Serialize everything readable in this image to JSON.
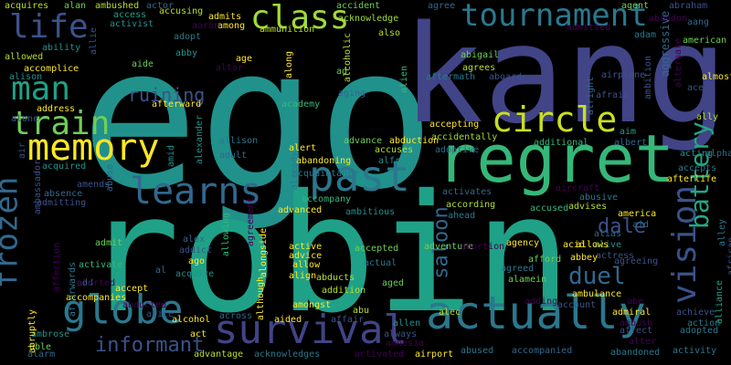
{
  "palette": {
    "background": "#000000",
    "dark_purple": "#440154",
    "indigo": "#3b528b",
    "blue": "#31688e",
    "teal": "#21918c",
    "green": "#35b779",
    "light_green": "#6ece58",
    "yellow_green": "#b5de2b",
    "yellow": "#fde725"
  },
  "words": [
    {
      "text": "ego",
      "color": "#21918c",
      "vertical": false
    },
    {
      "text": "kang",
      "color": "#414487",
      "vertical": false
    },
    {
      "text": "robin",
      "color": "#1fa187",
      "vertical": false
    },
    {
      "text": "regret",
      "color": "#35b779",
      "vertical": false
    },
    {
      "text": "actually",
      "color": "#2a788e",
      "vertical": false
    },
    {
      "text": "survival",
      "color": "#414487",
      "vertical": false
    },
    {
      "text": "globe",
      "color": "#2a788e",
      "vertical": false
    },
    {
      "text": "past",
      "color": "#2a788e",
      "vertical": false
    },
    {
      "text": "memory",
      "color": "#fde725",
      "vertical": false
    },
    {
      "text": "learns",
      "color": "#31688e",
      "vertical": false
    },
    {
      "text": "circle",
      "color": "#c8e020",
      "vertical": false
    },
    {
      "text": "class",
      "color": "#a0da39",
      "vertical": false
    },
    {
      "text": "tournament",
      "color": "#2a788e",
      "vertical": false
    },
    {
      "text": "train",
      "color": "#6ece58",
      "vertical": false
    },
    {
      "text": "man",
      "color": "#1fa187",
      "vertical": false
    },
    {
      "text": "life",
      "color": "#3b528b",
      "vertical": false
    },
    {
      "text": "frozen",
      "color": "#31688e",
      "vertical": true
    },
    {
      "text": "vision",
      "color": "#3b528b",
      "vertical": true
    },
    {
      "text": "battery",
      "color": "#22a884",
      "vertical": true
    },
    {
      "text": "duel",
      "color": "#31688e",
      "vertical": false
    },
    {
      "text": "dale",
      "color": "#3b528b",
      "vertical": false
    },
    {
      "text": "informant",
      "color": "#3b528b",
      "vertical": false
    },
    {
      "text": "ruining",
      "color": "#3b528b",
      "vertical": false
    },
    {
      "text": "saloon",
      "color": "#31688e",
      "vertical": true
    },
    {
      "text": "acquires",
      "color": "#b5de2b",
      "vertical": false
    },
    {
      "text": "alan",
      "color": "#6ece58",
      "vertical": false
    },
    {
      "text": "ambushed",
      "color": "#b5de2b",
      "vertical": false
    },
    {
      "text": "actor",
      "color": "#31688e",
      "vertical": false
    },
    {
      "text": "accusing",
      "color": "#b5de2b",
      "vertical": false
    },
    {
      "text": "access",
      "color": "#1fa187",
      "vertical": false
    },
    {
      "text": "activist",
      "color": "#21918c",
      "vertical": false
    },
    {
      "text": "admits",
      "color": "#fde725",
      "vertical": false
    },
    {
      "text": "among",
      "color": "#fde725",
      "vertical": false
    },
    {
      "text": "ammunition",
      "color": "#b5de2b",
      "vertical": false
    },
    {
      "text": "accident",
      "color": "#6ece58",
      "vertical": false
    },
    {
      "text": "acknowledge",
      "color": "#a0da39",
      "vertical": false
    },
    {
      "text": "also",
      "color": "#b5de2b",
      "vertical": false
    },
    {
      "text": "agree",
      "color": "#31688e",
      "vertical": false
    },
    {
      "text": "agent",
      "color": "#6ece58",
      "vertical": false
    },
    {
      "text": "abraham",
      "color": "#3b528b",
      "vertical": false
    },
    {
      "text": "abandon",
      "color": "#440154",
      "vertical": false
    },
    {
      "text": "aang",
      "color": "#31688e",
      "vertical": false
    },
    {
      "text": "american",
      "color": "#6ece58",
      "vertical": false
    },
    {
      "text": "adam",
      "color": "#2a788e",
      "vertical": false
    },
    {
      "text": "ability",
      "color": "#21918c",
      "vertical": false
    },
    {
      "text": "allowed",
      "color": "#b5de2b",
      "vertical": false
    },
    {
      "text": "accomplice",
      "color": "#fde725",
      "vertical": false
    },
    {
      "text": "alison",
      "color": "#21918c",
      "vertical": false
    },
    {
      "text": "address",
      "color": "#fde725",
      "vertical": false
    },
    {
      "text": "alone",
      "color": "#3b528b",
      "vertical": false
    },
    {
      "text": "aaron",
      "color": "#440154",
      "vertical": false
    },
    {
      "text": "adopt",
      "color": "#2a788e",
      "vertical": false
    },
    {
      "text": "abby",
      "color": "#21918c",
      "vertical": false
    },
    {
      "text": "aide",
      "color": "#6ece58",
      "vertical": false
    },
    {
      "text": "altar",
      "color": "#440154",
      "vertical": false
    },
    {
      "text": "age",
      "color": "#fde725",
      "vertical": false
    },
    {
      "text": "afterward",
      "color": "#fde725",
      "vertical": false
    },
    {
      "text": "ad",
      "color": "#6ece58",
      "vertical": false
    },
    {
      "text": "aging",
      "color": "#31688e",
      "vertical": false
    },
    {
      "text": "academy",
      "color": "#35b779",
      "vertical": false
    },
    {
      "text": "abigail",
      "color": "#6ece58",
      "vertical": false
    },
    {
      "text": "agrees",
      "color": "#b5de2b",
      "vertical": false
    },
    {
      "text": "aftermath",
      "color": "#2a788e",
      "vertical": false
    },
    {
      "text": "aboard",
      "color": "#3b528b",
      "vertical": false
    },
    {
      "text": "admitted",
      "color": "#440154",
      "vertical": false
    },
    {
      "text": "afraid",
      "color": "#3b528b",
      "vertical": false
    },
    {
      "text": "airplane",
      "color": "#3b528b",
      "vertical": false
    },
    {
      "text": "ace",
      "color": "#3b528b",
      "vertical": false
    },
    {
      "text": "almost",
      "color": "#fde725",
      "vertical": false
    },
    {
      "text": "aim",
      "color": "#1fa187",
      "vertical": false
    },
    {
      "text": "albert",
      "color": "#31688e",
      "vertical": false
    },
    {
      "text": "additional",
      "color": "#35b779",
      "vertical": false
    },
    {
      "text": "ally",
      "color": "#b5de2b",
      "vertical": false
    },
    {
      "text": "accepting",
      "color": "#fde725",
      "vertical": false
    },
    {
      "text": "accidentally",
      "color": "#a0da39",
      "vertical": false
    },
    {
      "text": "adoptive",
      "color": "#31688e",
      "vertical": false
    },
    {
      "text": "advance",
      "color": "#6ece58",
      "vertical": false
    },
    {
      "text": "abduction",
      "color": "#fde725",
      "vertical": false
    },
    {
      "text": "alert",
      "color": "#fde725",
      "vertical": false
    },
    {
      "text": "abandoning",
      "color": "#fde725",
      "vertical": false
    },
    {
      "text": "accuses",
      "color": "#b5de2b",
      "vertical": false
    },
    {
      "text": "alfred",
      "color": "#21918c",
      "vertical": false
    },
    {
      "text": "acquaintance",
      "color": "#2a788e",
      "vertical": false
    },
    {
      "text": "allison",
      "color": "#2a788e",
      "vertical": false
    },
    {
      "text": "adult",
      "color": "#31688e",
      "vertical": false
    },
    {
      "text": "acting",
      "color": "#21918c",
      "vertical": false
    },
    {
      "text": "alpha",
      "color": "#31688e",
      "vertical": false
    },
    {
      "text": "accepts",
      "color": "#2a788e",
      "vertical": false
    },
    {
      "text": "afterlife",
      "color": "#fde725",
      "vertical": false
    },
    {
      "text": "acquired",
      "color": "#21918c",
      "vertical": false
    },
    {
      "text": "absence",
      "color": "#31688e",
      "vertical": false
    },
    {
      "text": "admitting",
      "color": "#3b528b",
      "vertical": false
    },
    {
      "text": "amends",
      "color": "#3b528b",
      "vertical": false
    },
    {
      "text": "activates",
      "color": "#31688e",
      "vertical": false
    },
    {
      "text": "aircraft",
      "color": "#440154",
      "vertical": false
    },
    {
      "text": "accompany",
      "color": "#35b779",
      "vertical": false
    },
    {
      "text": "advanced",
      "color": "#fde725",
      "vertical": false
    },
    {
      "text": "ambitious",
      "color": "#21918c",
      "vertical": false
    },
    {
      "text": "according",
      "color": "#b5de2b",
      "vertical": false
    },
    {
      "text": "accused",
      "color": "#35b779",
      "vertical": false
    },
    {
      "text": "advises",
      "color": "#b5de2b",
      "vertical": false
    },
    {
      "text": "abusive",
      "color": "#2a788e",
      "vertical": false
    },
    {
      "text": "america",
      "color": "#fde725",
      "vertical": false
    },
    {
      "text": "aid",
      "color": "#31688e",
      "vertical": false
    },
    {
      "text": "ahead",
      "color": "#2a788e",
      "vertical": false
    },
    {
      "text": "alias",
      "color": "#31688e",
      "vertical": false
    },
    {
      "text": "alive",
      "color": "#21918c",
      "vertical": false
    },
    {
      "text": "actress",
      "color": "#3b528b",
      "vertical": false
    },
    {
      "text": "acid",
      "color": "#fde725",
      "vertical": false
    },
    {
      "text": "allows",
      "color": "#fde725",
      "vertical": false
    },
    {
      "text": "abbey",
      "color": "#fde725",
      "vertical": false
    },
    {
      "text": "agreeing",
      "color": "#3b528b",
      "vertical": false
    },
    {
      "text": "agency",
      "color": "#fde725",
      "vertical": false
    },
    {
      "text": "afford",
      "color": "#6ece58",
      "vertical": false
    },
    {
      "text": "agreed",
      "color": "#2a788e",
      "vertical": false
    },
    {
      "text": "alamein",
      "color": "#6ece58",
      "vertical": false
    },
    {
      "text": "adding",
      "color": "#440154",
      "vertical": false
    },
    {
      "text": "actual",
      "color": "#2a788e",
      "vertical": false
    },
    {
      "text": "aged",
      "color": "#6ece58",
      "vertical": false
    },
    {
      "text": "abducts",
      "color": "#b5de2b",
      "vertical": false
    },
    {
      "text": "addition",
      "color": "#b5de2b",
      "vertical": false
    },
    {
      "text": "allow",
      "color": "#fde725",
      "vertical": false
    },
    {
      "text": "advice",
      "color": "#fde725",
      "vertical": false
    },
    {
      "text": "align",
      "color": "#fde725",
      "vertical": false
    },
    {
      "text": "active",
      "color": "#fde725",
      "vertical": false
    },
    {
      "text": "accepted",
      "color": "#6ece58",
      "vertical": false
    },
    {
      "text": "adventure",
      "color": "#6ece58",
      "vertical": false
    },
    {
      "text": "abortion",
      "color": "#440154",
      "vertical": false
    },
    {
      "text": "alec",
      "color": "#b5de2b",
      "vertical": false
    },
    {
      "text": "account",
      "color": "#3b528b",
      "vertical": false
    },
    {
      "text": "admiral",
      "color": "#fde725",
      "vertical": false
    },
    {
      "text": "affect",
      "color": "#3b528b",
      "vertical": false
    },
    {
      "text": "alter",
      "color": "#440154",
      "vertical": false
    },
    {
      "text": "ambush",
      "color": "#440154",
      "vertical": false
    },
    {
      "text": "abe",
      "color": "#440154",
      "vertical": false
    },
    {
      "text": "ambulance",
      "color": "#fde725",
      "vertical": false
    },
    {
      "text": "achieve",
      "color": "#3b528b",
      "vertical": false
    },
    {
      "text": "action",
      "color": "#2a788e",
      "vertical": false
    },
    {
      "text": "adopted",
      "color": "#2a788e",
      "vertical": false
    },
    {
      "text": "activity",
      "color": "#2a788e",
      "vertical": false
    },
    {
      "text": "abandoned",
      "color": "#2a788e",
      "vertical": false
    },
    {
      "text": "accompanied",
      "color": "#31688e",
      "vertical": false
    },
    {
      "text": "abused",
      "color": "#2a788e",
      "vertical": false
    },
    {
      "text": "airport",
      "color": "#fde725",
      "vertical": false
    },
    {
      "text": "activated",
      "color": "#440154",
      "vertical": false
    },
    {
      "text": "always",
      "color": "#3b528b",
      "vertical": false
    },
    {
      "text": "allen",
      "color": "#21918c",
      "vertical": false
    },
    {
      "text": "amnesia",
      "color": "#440154",
      "vertical": false
    },
    {
      "text": "abu",
      "color": "#b5de2b",
      "vertical": false
    },
    {
      "text": "affair",
      "color": "#3b528b",
      "vertical": false
    },
    {
      "text": "aided",
      "color": "#fde725",
      "vertical": false
    },
    {
      "text": "acknowledges",
      "color": "#2a788e",
      "vertical": false
    },
    {
      "text": "advantage",
      "color": "#b5de2b",
      "vertical": false
    },
    {
      "text": "act",
      "color": "#fde725",
      "vertical": false
    },
    {
      "text": "alcohol",
      "color": "#fde725",
      "vertical": false
    },
    {
      "text": "across",
      "color": "#31688e",
      "vertical": false
    },
    {
      "text": "alice",
      "color": "#3b528b",
      "vertical": false
    },
    {
      "text": "abducted",
      "color": "#440154",
      "vertical": false
    },
    {
      "text": "accept",
      "color": "#fde725",
      "vertical": false
    },
    {
      "text": "add",
      "color": "#2a788e",
      "vertical": false
    },
    {
      "text": "accompanies",
      "color": "#fde725",
      "vertical": false
    },
    {
      "text": "activate",
      "color": "#35b779",
      "vertical": false
    },
    {
      "text": "admit",
      "color": "#6ece58",
      "vertical": false
    },
    {
      "text": "alerted",
      "color": "#440154",
      "vertical": false
    },
    {
      "text": "alex",
      "color": "#31688e",
      "vertical": false
    },
    {
      "text": "addict",
      "color": "#3b528b",
      "vertical": false
    },
    {
      "text": "ago",
      "color": "#fde725",
      "vertical": false
    },
    {
      "text": "acquire",
      "color": "#21918c",
      "vertical": false
    },
    {
      "text": "al",
      "color": "#31688e",
      "vertical": false
    },
    {
      "text": "amongst",
      "color": "#fde725",
      "vertical": false
    },
    {
      "text": "able",
      "color": "#6ece58",
      "vertical": false
    },
    {
      "text": "alarm",
      "color": "#31688e",
      "vertical": false
    },
    {
      "text": "ambrose",
      "color": "#21918c",
      "vertical": false
    },
    {
      "text": "allie",
      "color": "#3b528b",
      "vertical": true
    },
    {
      "text": "air",
      "color": "#3b528b",
      "vertical": true
    },
    {
      "text": "aggressive",
      "color": "#31688e",
      "vertical": true
    },
    {
      "text": "ambition",
      "color": "#3b528b",
      "vertical": true
    },
    {
      "text": "alternate",
      "color": "#440154",
      "vertical": true
    },
    {
      "text": "alright",
      "color": "#31688e",
      "vertical": true
    },
    {
      "text": "ambassador",
      "color": "#3b528b",
      "vertical": true
    },
    {
      "text": "abuse",
      "color": "#31688e",
      "vertical": true
    },
    {
      "text": "amid",
      "color": "#21918c",
      "vertical": true
    },
    {
      "text": "alexander",
      "color": "#21918c",
      "vertical": true
    },
    {
      "text": "allowing",
      "color": "#35b779",
      "vertical": true
    },
    {
      "text": "agreement",
      "color": "#440154",
      "vertical": true
    },
    {
      "text": "alongside",
      "color": "#fde725",
      "vertical": true
    },
    {
      "text": "although",
      "color": "#fde725",
      "vertical": true
    },
    {
      "text": "alcoholic",
      "color": "#b5de2b",
      "vertical": true
    },
    {
      "text": "along",
      "color": "#fde725",
      "vertical": true
    },
    {
      "text": "already",
      "color": "#2a788e",
      "vertical": true
    },
    {
      "text": "alien",
      "color": "#35b779",
      "vertical": true
    },
    {
      "text": "affection",
      "color": "#440154",
      "vertical": true
    },
    {
      "text": "afterwards",
      "color": "#2a788e",
      "vertical": true
    },
    {
      "text": "abruptly",
      "color": "#fde725",
      "vertical": true
    },
    {
      "text": "alley",
      "color": "#2a788e",
      "vertical": true
    },
    {
      "text": "african",
      "color": "#3b528b",
      "vertical": true
    },
    {
      "text": "alliance",
      "color": "#1fa187",
      "vertical": true
    }
  ]
}
